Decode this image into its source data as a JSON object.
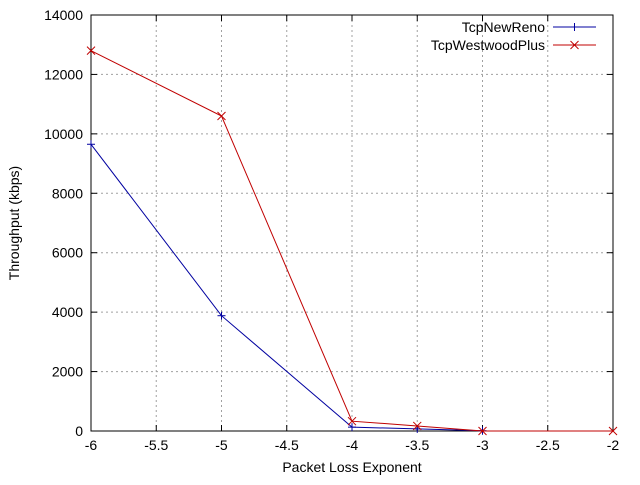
{
  "chart_data": {
    "type": "line",
    "title": "",
    "xlabel": "Packet Loss Exponent",
    "ylabel": "Throughput (kbps)",
    "xlim": [
      -6,
      -2
    ],
    "ylim": [
      0,
      14000
    ],
    "x_ticks": [
      -6,
      -5.5,
      -5,
      -4.5,
      -4,
      -3.5,
      -3,
      -2.5,
      -2
    ],
    "y_ticks": [
      0,
      2000,
      4000,
      6000,
      8000,
      10000,
      12000,
      14000
    ],
    "grid": true,
    "legend_position": "top-right",
    "series": [
      {
        "name": "TcpNewReno",
        "color": "#0000a0",
        "marker": "plus",
        "points": [
          [
            -6,
            9650
          ],
          [
            -5,
            3880
          ],
          [
            -4,
            130
          ],
          [
            -3.5,
            70
          ],
          [
            -3,
            10
          ]
        ]
      },
      {
        "name": "TcpWestwoodPlus",
        "color": "#c00000",
        "marker": "cross",
        "points": [
          [
            -6,
            12800
          ],
          [
            -5,
            10600
          ],
          [
            -4,
            330
          ],
          [
            -3.5,
            170
          ],
          [
            -3,
            0
          ],
          [
            -2,
            0
          ]
        ]
      }
    ]
  }
}
